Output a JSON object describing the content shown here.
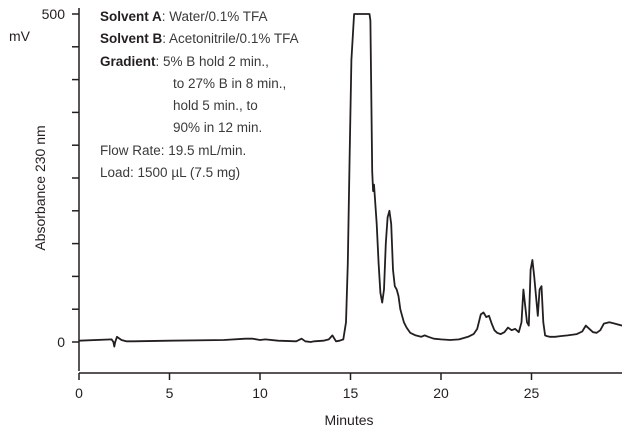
{
  "conditions": {
    "solvent_a_label": "Solvent A",
    "solvent_a_value": ": Water/0.1% TFA",
    "solvent_b_label": "Solvent B",
    "solvent_b_value": ": Acetonitrile/0.1% TFA",
    "gradient_label": "Gradient",
    "gradient_lines": [
      ": 5% B hold 2 min.,",
      "to 27% B in 8 min.,",
      "hold 5 min., to",
      "90% in 12 min."
    ],
    "flow_rate": "Flow Rate: 19.5 mL/min.",
    "load": "Load: 1500 µL (7.5 mg)"
  },
  "chart_data": {
    "type": "line",
    "xlabel": "Minutes",
    "ylabel": "Absorbance 230 nm",
    "yunit": "mV",
    "xlim": [
      0,
      30
    ],
    "ylim": [
      0,
      500
    ],
    "x_ticks": [
      0,
      5,
      10,
      15,
      20,
      25
    ],
    "y_tick_labels": [
      {
        "value": 0,
        "label": "0"
      },
      {
        "value": 500,
        "label": "500"
      }
    ],
    "y_minor_ticks": [
      50,
      100,
      150,
      200,
      250,
      300,
      350,
      400,
      450
    ],
    "series": [
      {
        "color": "#231f20",
        "x": [
          0,
          1.8,
          1.9,
          1.95,
          2.0,
          2.1,
          2.2,
          2.35,
          2.6,
          3,
          5,
          8,
          9.2,
          9.6,
          10,
          10.3,
          11,
          12,
          12.3,
          12.5,
          12.8,
          13,
          13.5,
          13.8,
          14.0,
          14.2,
          14.4,
          14.6,
          14.75,
          14.85,
          14.95,
          15.05,
          15.2,
          15.35,
          15.5,
          15.65,
          15.8,
          15.9,
          16.0,
          16.05,
          16.1,
          16.2,
          16.25,
          16.3,
          16.35,
          16.45,
          16.55,
          16.65,
          16.75,
          16.85,
          16.95,
          17.05,
          17.15,
          17.25,
          17.35,
          17.45,
          17.55,
          17.65,
          17.75,
          17.85,
          17.95,
          18.1,
          18.3,
          18.6,
          18.9,
          19.1,
          19.3,
          19.6,
          20,
          20.5,
          21,
          21.5,
          21.8,
          22.0,
          22.2,
          22.35,
          22.5,
          22.65,
          22.8,
          22.95,
          23.1,
          23.3,
          23.5,
          23.7,
          23.9,
          24.1,
          24.3,
          24.45,
          24.55,
          24.65,
          24.75,
          24.85,
          24.95,
          25.05,
          25.15,
          25.25,
          25.35,
          25.45,
          25.55,
          25.65,
          25.75,
          25.85,
          26.0,
          26.3,
          26.6,
          27.0,
          27.5,
          27.8,
          28.0,
          28.2,
          28.4,
          28.6,
          28.8,
          29.0,
          29.3,
          29.6,
          30
        ],
        "y": [
          2,
          4,
          0,
          -7,
          0,
          8,
          6,
          3,
          1,
          1,
          2,
          3,
          5,
          5,
          3,
          4,
          2,
          1,
          5,
          1,
          0,
          1,
          2,
          4,
          10,
          1,
          2,
          4,
          30,
          120,
          280,
          430,
          500,
          500,
          500,
          500,
          500,
          500,
          500,
          500,
          490,
          260,
          230,
          240,
          220,
          180,
          120,
          75,
          60,
          80,
          150,
          190,
          200,
          180,
          110,
          85,
          80,
          70,
          50,
          40,
          30,
          22,
          14,
          10,
          8,
          10,
          8,
          5,
          4,
          3,
          4,
          8,
          12,
          20,
          42,
          45,
          38,
          40,
          28,
          18,
          14,
          12,
          15,
          22,
          18,
          20,
          15,
          30,
          80,
          55,
          30,
          25,
          110,
          125,
          100,
          70,
          40,
          80,
          85,
          30,
          10,
          9,
          8,
          8,
          9,
          10,
          12,
          16,
          25,
          20,
          15,
          14,
          18,
          28,
          30,
          28,
          25
        ]
      }
    ]
  }
}
